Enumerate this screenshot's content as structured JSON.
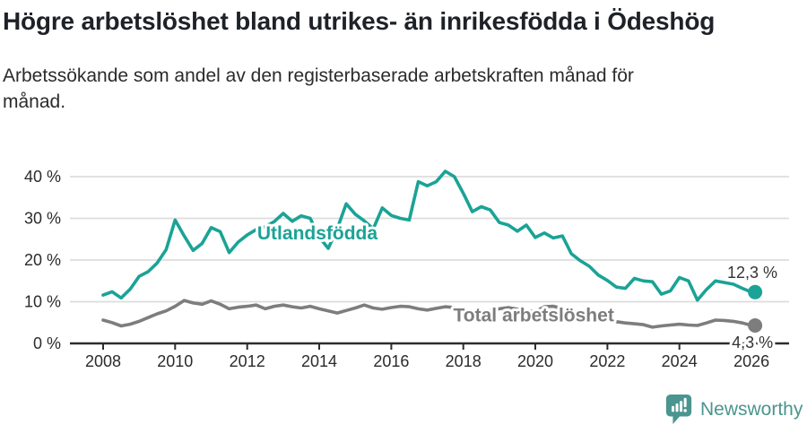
{
  "title": "Högre arbetslöshet bland utrikes- än inrikesfödda i Ödeshög",
  "subtitle_lines": [
    "Arbetssökande som andel av den registerbaserade arbetskraften månad för",
    "månad."
  ],
  "subtitle_full": "Arbetssökande som andel av den registerbaserade arbetskraften månad för månad.",
  "footer": {
    "brand": "Newsworthy",
    "icon": "bar-chart-speech-bubble-icon",
    "brand_color": "#4a958f"
  },
  "colors": {
    "foreign_born_line": "#1aa396",
    "total_line": "#7d7d7d",
    "grid": "#dddddd",
    "axis": "#2d2d2d",
    "tick_text": "#2b2b2b",
    "title_text": "#1e2228",
    "value_label_text": "#333333",
    "background": "#ffffff"
  },
  "chart_data": {
    "type": "line",
    "grid": "horizontal-only",
    "xlim": [
      2007.1,
      2027.0
    ],
    "ylim": [
      0,
      44
    ],
    "xticks": [
      2008,
      2010,
      2012,
      2014,
      2016,
      2018,
      2020,
      2022,
      2024,
      2026
    ],
    "yticks": [
      0,
      10,
      20,
      30,
      40
    ],
    "ytick_labels": [
      "0 %",
      "10 %",
      "20 %",
      "30 %",
      "40 %"
    ],
    "x": [
      2008,
      2008.25,
      2008.5,
      2008.75,
      2009,
      2009.25,
      2009.5,
      2009.75,
      2010,
      2010.25,
      2010.5,
      2010.75,
      2011,
      2011.25,
      2011.5,
      2011.75,
      2012,
      2012.25,
      2012.5,
      2012.75,
      2013,
      2013.25,
      2013.5,
      2013.75,
      2014,
      2014.25,
      2014.5,
      2014.75,
      2015,
      2015.25,
      2015.5,
      2015.75,
      2016,
      2016.25,
      2016.5,
      2016.75,
      2017,
      2017.25,
      2017.5,
      2017.75,
      2018,
      2018.25,
      2018.5,
      2018.75,
      2019,
      2019.25,
      2019.5,
      2019.75,
      2020,
      2020.25,
      2020.5,
      2020.75,
      2021,
      2021.25,
      2021.5,
      2021.75,
      2022,
      2022.25,
      2022.5,
      2022.75,
      2023,
      2023.25,
      2023.5,
      2023.75,
      2024,
      2024.25,
      2024.5,
      2024.75,
      2025,
      2025.25,
      2025.5,
      2025.75,
      2026
    ],
    "series": [
      {
        "name": "Utlandsfödda",
        "color": "#1aa396",
        "end_value": 12.3,
        "values": [
          11.6,
          12.4,
          10.9,
          13.0,
          16.1,
          17.2,
          19.3,
          22.5,
          29.6,
          25.8,
          22.3,
          24.0,
          27.8,
          26.8,
          21.8,
          24.3,
          26.0,
          27.3,
          28.0,
          29.2,
          31.2,
          29.3,
          30.6,
          30.0,
          25.5,
          22.8,
          27.5,
          33.5,
          31.0,
          29.4,
          27.5,
          32.5,
          30.7,
          30.0,
          29.6,
          38.8,
          37.8,
          38.8,
          41.3,
          40.0,
          36.0,
          31.6,
          32.8,
          32.0,
          29.0,
          28.4,
          26.9,
          28.4,
          25.4,
          26.5,
          25.3,
          25.8,
          21.5,
          19.8,
          18.5,
          16.4,
          15.1,
          13.5,
          13.2,
          15.6,
          15.0,
          14.8,
          11.8,
          12.6,
          15.8,
          15.0,
          10.4,
          12.9,
          15.0,
          14.6,
          14.2,
          13.2,
          12.3
        ]
      },
      {
        "name": "Total arbetslöshet",
        "color": "#7d7d7d",
        "end_value": 4.3,
        "values": [
          5.6,
          5.0,
          4.2,
          4.6,
          5.3,
          6.2,
          7.1,
          7.8,
          8.9,
          10.3,
          9.7,
          9.4,
          10.2,
          9.4,
          8.3,
          8.7,
          8.9,
          9.2,
          8.3,
          8.9,
          9.2,
          8.8,
          8.5,
          8.9,
          8.3,
          7.8,
          7.3,
          7.9,
          8.5,
          9.2,
          8.5,
          8.2,
          8.6,
          8.9,
          8.8,
          8.3,
          8.0,
          8.4,
          8.8,
          8.6,
          8.2,
          7.7,
          7.4,
          7.9,
          8.3,
          8.6,
          8.2,
          7.9,
          7.6,
          8.8,
          8.9,
          8.4,
          7.8,
          7.3,
          6.8,
          6.2,
          5.6,
          5.2,
          4.9,
          4.7,
          4.5,
          3.9,
          4.2,
          4.4,
          4.6,
          4.4,
          4.3,
          4.9,
          5.6,
          5.5,
          5.3,
          4.9,
          4.3
        ]
      }
    ],
    "annotations": [
      {
        "text": "Utlandsfödda",
        "x": 2012.28,
        "y": 25.0,
        "anchor": "start",
        "color": "#1aa396",
        "size": 21,
        "bold": true
      },
      {
        "text": "Total arbetslöshet",
        "x": 2017.72,
        "y": 5.3,
        "anchor": "start",
        "color": "#7d7d7d",
        "size": 21,
        "bold": true
      },
      {
        "text": "12,3 %",
        "x": 2026.72,
        "y": 15.7,
        "anchor": "end",
        "color": "#333333",
        "size": 18,
        "bold": false
      },
      {
        "text": "4,3 %",
        "x": 2026.6,
        "y": -1.1,
        "anchor": "end",
        "color": "#333333",
        "size": 18,
        "bold": false
      }
    ]
  }
}
